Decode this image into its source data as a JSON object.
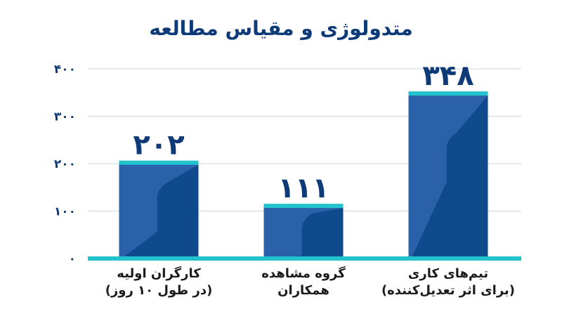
{
  "chart_data": {
    "type": "bar",
    "title": "متدولوژی و مقیاس مطالعه",
    "categories": [
      [
        "کارگران اولیه",
        "(در طول ۱۰ روز)"
      ],
      [
        "گروه مشاهده",
        "همکاران"
      ],
      [
        "تیم‌های کاری",
        "(برای اثر تعدیل‌کننده)"
      ]
    ],
    "values": [
      202,
      111,
      348
    ],
    "value_labels": [
      "۲۰۲",
      "۱۱۱",
      "۳۴۸"
    ],
    "yticks": [
      0,
      100,
      200,
      300,
      400
    ],
    "ytick_labels": [
      "۰",
      "۱۰۰",
      "۲۰۰",
      "۳۰۰",
      "۴۰۰"
    ],
    "ylim": [
      0,
      400
    ],
    "grid": true,
    "xlabel": "",
    "ylabel": "",
    "colors": {
      "bar": "#2b61a8",
      "bar_dark": "#0f4a8c",
      "cap": "#22c3cc",
      "text": "#0f3a78",
      "grid": "#cfd6de"
    }
  }
}
